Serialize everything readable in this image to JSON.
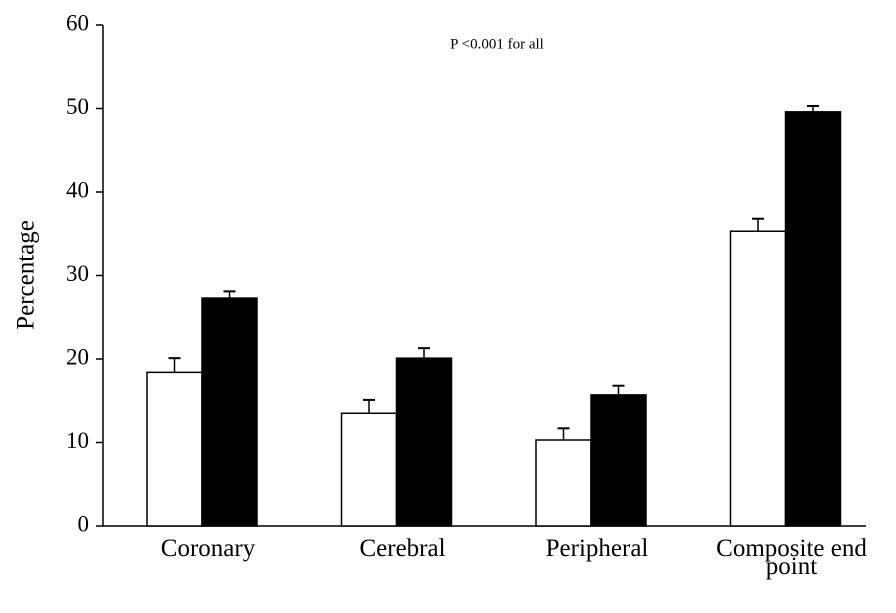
{
  "chart_data": {
    "type": "bar",
    "annotation": "P <0.001 for all",
    "y_label": "Percentage",
    "categories": [
      "Coronary",
      "Cerebral",
      "Peripheral",
      "Composite end point"
    ],
    "series": [
      {
        "color": "#ffffff",
        "values": [
          18.4,
          13.5,
          10.3,
          35.3
        ],
        "errors": [
          1.7,
          1.6,
          1.4,
          1.5
        ]
      },
      {
        "color": "#000000",
        "values": [
          27.3,
          20.1,
          15.7,
          49.6
        ],
        "errors": [
          0.8,
          1.2,
          1.1,
          0.7
        ]
      }
    ],
    "ylim": [
      0,
      60
    ],
    "yticks": [
      0,
      10,
      20,
      30,
      40,
      50,
      60
    ],
    "grid": false
  }
}
